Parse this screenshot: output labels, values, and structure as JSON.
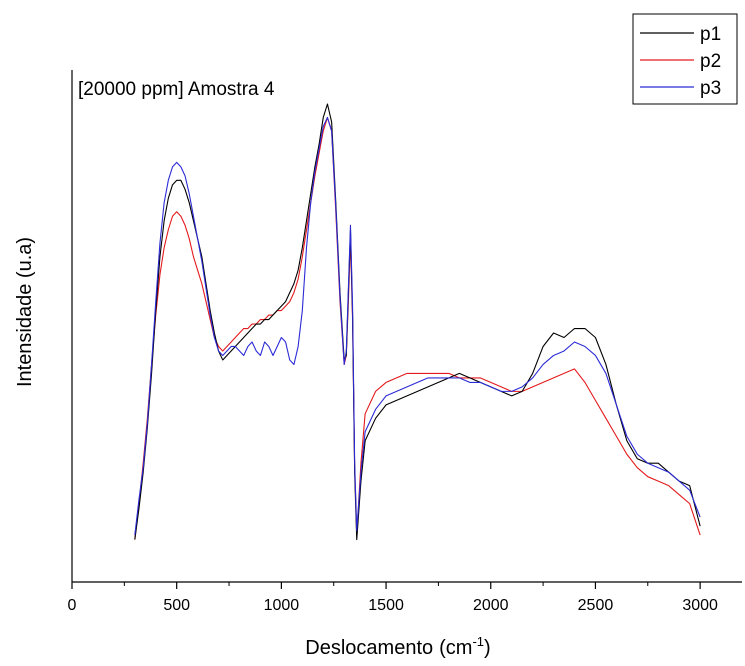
{
  "chart_data": {
    "type": "line",
    "title": "[20000 ppm] Amostra 4",
    "xlabel": "Deslocamento",
    "xlabel_unit": "(cm",
    "xlabel_exp": "-1",
    "xlabel_close": ")",
    "ylabel": "Intensidade (u.a)",
    "xlim": [
      0,
      3200
    ],
    "ylim": [
      0,
      1
    ],
    "xticks": [
      0,
      500,
      1000,
      1500,
      2000,
      2500,
      3000
    ],
    "yticks_shown": false,
    "grid": false,
    "legend_position": "top-right",
    "x": [
      300,
      320,
      340,
      360,
      380,
      400,
      420,
      440,
      460,
      480,
      500,
      520,
      540,
      560,
      580,
      600,
      620,
      640,
      660,
      680,
      700,
      720,
      740,
      760,
      780,
      800,
      820,
      840,
      860,
      880,
      900,
      920,
      940,
      960,
      980,
      1000,
      1020,
      1040,
      1060,
      1080,
      1100,
      1120,
      1140,
      1160,
      1180,
      1200,
      1220,
      1240,
      1260,
      1280,
      1300,
      1310,
      1320,
      1330,
      1340,
      1350,
      1360,
      1380,
      1400,
      1450,
      1500,
      1550,
      1600,
      1650,
      1700,
      1750,
      1800,
      1850,
      1900,
      1950,
      2000,
      2050,
      2100,
      2150,
      2200,
      2250,
      2300,
      2350,
      2400,
      2450,
      2500,
      2550,
      2600,
      2650,
      2700,
      2750,
      2800,
      2850,
      2900,
      2950,
      3000
    ],
    "series": [
      {
        "name": "p1",
        "color": "#000000",
        "values": [
          0.05,
          0.12,
          0.2,
          0.3,
          0.42,
          0.56,
          0.68,
          0.76,
          0.81,
          0.84,
          0.85,
          0.85,
          0.83,
          0.8,
          0.76,
          0.72,
          0.68,
          0.62,
          0.56,
          0.51,
          0.47,
          0.45,
          0.46,
          0.47,
          0.48,
          0.49,
          0.5,
          0.51,
          0.52,
          0.53,
          0.53,
          0.54,
          0.54,
          0.55,
          0.56,
          0.57,
          0.58,
          0.6,
          0.62,
          0.65,
          0.7,
          0.76,
          0.82,
          0.88,
          0.93,
          0.99,
          1.02,
          0.98,
          0.8,
          0.6,
          0.45,
          0.46,
          0.6,
          0.74,
          0.55,
          0.2,
          0.05,
          0.18,
          0.27,
          0.32,
          0.35,
          0.36,
          0.37,
          0.38,
          0.39,
          0.4,
          0.41,
          0.42,
          0.41,
          0.4,
          0.39,
          0.38,
          0.37,
          0.38,
          0.42,
          0.48,
          0.51,
          0.5,
          0.52,
          0.52,
          0.5,
          0.44,
          0.35,
          0.27,
          0.23,
          0.22,
          0.22,
          0.2,
          0.18,
          0.17,
          0.08
        ]
      },
      {
        "name": "p2",
        "color": "#e31a1c",
        "values": [
          0.05,
          0.13,
          0.22,
          0.32,
          0.44,
          0.55,
          0.64,
          0.7,
          0.74,
          0.77,
          0.78,
          0.77,
          0.75,
          0.72,
          0.68,
          0.65,
          0.62,
          0.58,
          0.54,
          0.5,
          0.48,
          0.47,
          0.48,
          0.49,
          0.5,
          0.51,
          0.52,
          0.52,
          0.53,
          0.53,
          0.54,
          0.54,
          0.55,
          0.55,
          0.56,
          0.56,
          0.57,
          0.58,
          0.6,
          0.63,
          0.68,
          0.74,
          0.8,
          0.86,
          0.91,
          0.96,
          0.99,
          0.96,
          0.78,
          0.58,
          0.44,
          0.46,
          0.58,
          0.72,
          0.54,
          0.21,
          0.06,
          0.22,
          0.33,
          0.38,
          0.4,
          0.41,
          0.42,
          0.42,
          0.42,
          0.42,
          0.42,
          0.41,
          0.41,
          0.41,
          0.4,
          0.39,
          0.38,
          0.38,
          0.39,
          0.4,
          0.41,
          0.42,
          0.43,
          0.4,
          0.36,
          0.32,
          0.28,
          0.24,
          0.21,
          0.19,
          0.18,
          0.17,
          0.15,
          0.13,
          0.06
        ]
      },
      {
        "name": "p3",
        "color": "#2b2bd6",
        "values": [
          0.06,
          0.14,
          0.21,
          0.31,
          0.44,
          0.58,
          0.71,
          0.8,
          0.85,
          0.88,
          0.89,
          0.88,
          0.86,
          0.82,
          0.77,
          0.72,
          0.67,
          0.61,
          0.55,
          0.5,
          0.47,
          0.46,
          0.47,
          0.48,
          0.48,
          0.47,
          0.46,
          0.48,
          0.49,
          0.47,
          0.46,
          0.49,
          0.48,
          0.46,
          0.48,
          0.5,
          0.49,
          0.45,
          0.44,
          0.48,
          0.56,
          0.7,
          0.8,
          0.87,
          0.92,
          0.97,
          0.99,
          0.96,
          0.79,
          0.59,
          0.44,
          0.47,
          0.61,
          0.75,
          0.57,
          0.22,
          0.07,
          0.2,
          0.29,
          0.34,
          0.37,
          0.38,
          0.39,
          0.4,
          0.41,
          0.41,
          0.41,
          0.41,
          0.4,
          0.4,
          0.39,
          0.38,
          0.38,
          0.39,
          0.41,
          0.44,
          0.46,
          0.47,
          0.49,
          0.48,
          0.46,
          0.42,
          0.35,
          0.28,
          0.24,
          0.22,
          0.21,
          0.2,
          0.18,
          0.16,
          0.1
        ]
      }
    ]
  }
}
